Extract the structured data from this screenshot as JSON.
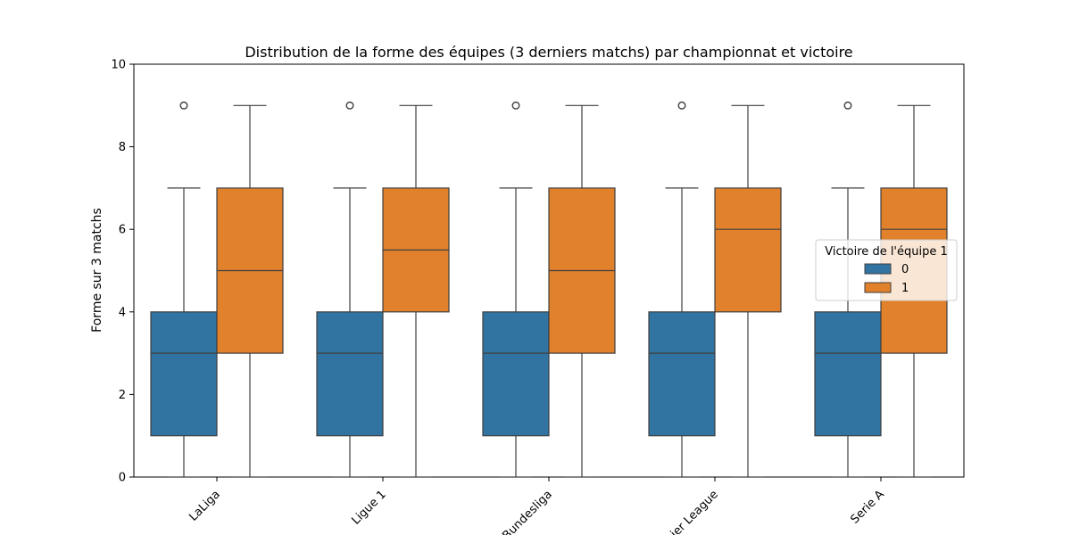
{
  "chart_data": {
    "type": "box",
    "title": "Distribution de la forme des équipes (3 derniers matchs) par championnat et victoire",
    "xlabel": "",
    "ylabel": "Forme sur 3 matchs",
    "ylim": [
      0,
      10
    ],
    "yticks": [
      0,
      2,
      4,
      6,
      8,
      10
    ],
    "categories": [
      "LaLiga",
      "Ligue 1",
      "Bundesliga",
      "Premier League",
      "Serie A"
    ],
    "legend": {
      "title": "Victoire de l'équipe 1",
      "position": "center-right"
    },
    "series": [
      {
        "name": "0",
        "color": "#3274a1",
        "boxes": [
          {
            "whisker_low": 0,
            "q1": 1,
            "median": 3,
            "q3": 4,
            "whisker_high": 7,
            "outliers": [
              9
            ]
          },
          {
            "whisker_low": 0,
            "q1": 1,
            "median": 3,
            "q3": 4,
            "whisker_high": 7,
            "outliers": [
              9
            ]
          },
          {
            "whisker_low": 0,
            "q1": 1,
            "median": 3,
            "q3": 4,
            "whisker_high": 7,
            "outliers": [
              9
            ]
          },
          {
            "whisker_low": 0,
            "q1": 1,
            "median": 3,
            "q3": 4,
            "whisker_high": 7,
            "outliers": [
              9
            ]
          },
          {
            "whisker_low": 0,
            "q1": 1,
            "median": 3,
            "q3": 4,
            "whisker_high": 7,
            "outliers": [
              9
            ]
          }
        ]
      },
      {
        "name": "1",
        "color": "#e1812c",
        "boxes": [
          {
            "whisker_low": 0,
            "q1": 3,
            "median": 5,
            "q3": 7,
            "whisker_high": 9,
            "outliers": []
          },
          {
            "whisker_low": 0,
            "q1": 4,
            "median": 5.5,
            "q3": 7,
            "whisker_high": 9,
            "outliers": []
          },
          {
            "whisker_low": 0,
            "q1": 3,
            "median": 5,
            "q3": 7,
            "whisker_high": 9,
            "outliers": []
          },
          {
            "whisker_low": 0,
            "q1": 4,
            "median": 6,
            "q3": 7,
            "whisker_high": 9,
            "outliers": []
          },
          {
            "whisker_low": 0,
            "q1": 3,
            "median": 6,
            "q3": 7,
            "whisker_high": 9,
            "outliers": []
          }
        ]
      }
    ]
  }
}
